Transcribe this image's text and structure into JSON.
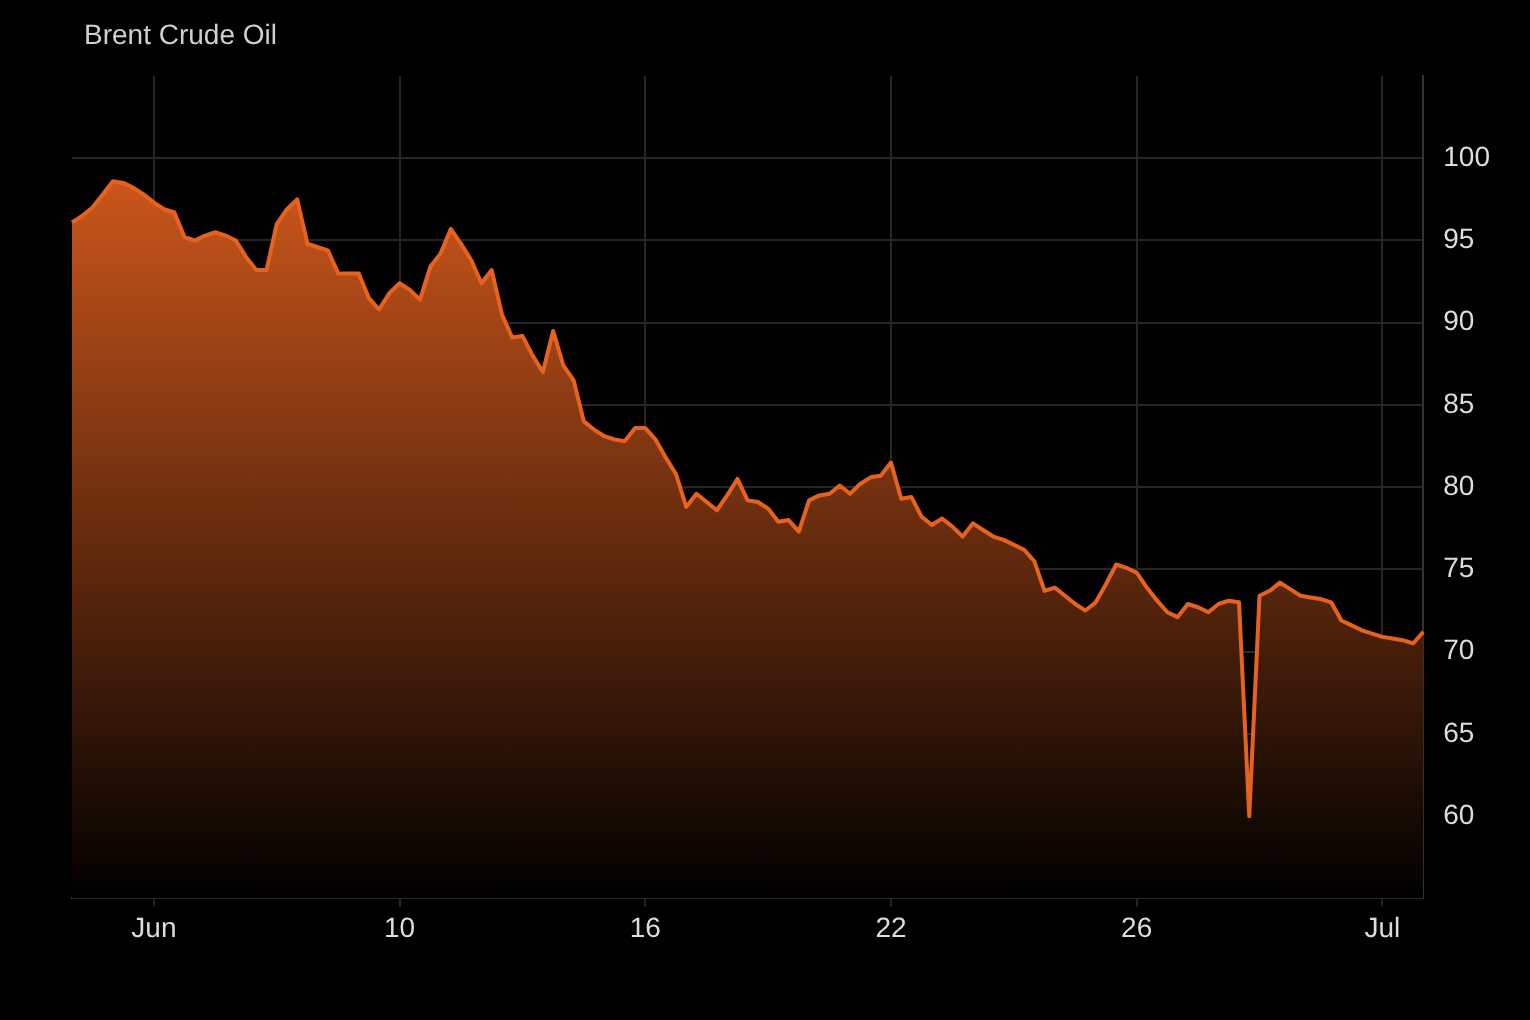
{
  "chart_data": {
    "type": "area",
    "title": "Brent Crude Oil",
    "categories": [
      null,
      null,
      null,
      null,
      null,
      null,
      null,
      null,
      "Jun",
      null,
      null,
      null,
      null,
      null,
      null,
      null,
      null,
      null,
      null,
      null,
      null,
      null,
      null,
      null,
      null,
      null,
      null,
      null,
      null,
      null,
      null,
      null,
      "10",
      null,
      null,
      null,
      null,
      null,
      null,
      null,
      null,
      null,
      null,
      null,
      null,
      null,
      null,
      null,
      null,
      null,
      null,
      null,
      null,
      null,
      null,
      null,
      "16",
      null,
      null,
      null,
      null,
      null,
      null,
      null,
      null,
      null,
      null,
      null,
      null,
      null,
      null,
      null,
      null,
      null,
      null,
      null,
      null,
      null,
      null,
      null,
      "22",
      null,
      null,
      null,
      null,
      null,
      null,
      null,
      null,
      null,
      null,
      null,
      null,
      null,
      null,
      null,
      null,
      null,
      null,
      null,
      null,
      null,
      null,
      null,
      "26",
      null,
      null,
      null,
      null,
      null,
      null,
      null,
      null,
      null,
      null,
      null,
      null,
      null,
      null,
      null,
      null,
      null,
      null,
      null,
      null,
      null,
      null,
      null,
      "Jul",
      null,
      null,
      null,
      null
    ],
    "series": [
      {
        "color": "#e8621f",
        "values": [
          96.1,
          96.5,
          97,
          97.8,
          98.6,
          98.5,
          98.2,
          97.8,
          97.3,
          96.9,
          96.7,
          95.2,
          95,
          95.3,
          95.5,
          95.3,
          95,
          94,
          93.2,
          93.2,
          96,
          96.9,
          97.5,
          94.8,
          94.6,
          94.4,
          93,
          93,
          93,
          91.5,
          90.8,
          91.8,
          92.4,
          92,
          91.4,
          93.4,
          94.2,
          95.7,
          94.8,
          93.8,
          92.4,
          93.2,
          90.5,
          89.1,
          89.2,
          88,
          87,
          89.5,
          87.4,
          86.5,
          84,
          83.5,
          83.1,
          82.9,
          82.8,
          83.6,
          83.6,
          82.9,
          81.8,
          80.8,
          78.8,
          79.6,
          79.1,
          78.6,
          79.5,
          80.5,
          79.2,
          79.1,
          78.7,
          77.9,
          78,
          77.3,
          79.2,
          79.5,
          79.6,
          80.1,
          79.6,
          80.2,
          80.6,
          80.7,
          81.5,
          79.3,
          79.4,
          78.2,
          77.7,
          78.1,
          77.6,
          77,
          77.8,
          77.4,
          77,
          76.8,
          76.5,
          76.2,
          75.5,
          73.7,
          73.9,
          73.4,
          72.9,
          72.5,
          73,
          74.1,
          75.3,
          75.1,
          74.8,
          73.9,
          73.1,
          72.4,
          72.1,
          72.9,
          72.7,
          72.4,
          72.9,
          73.1,
          73,
          60,
          73.4,
          73.7,
          74.2,
          73.8,
          73.4,
          73.3,
          73.2,
          73,
          71.9,
          71.6,
          71.3,
          71.1,
          70.9,
          70.8,
          70.7,
          70.5,
          71.2
        ]
      }
    ],
    "ylim": [
      55,
      105
    ],
    "yticks": [
      60,
      65,
      70,
      75,
      80,
      85,
      90,
      95,
      100
    ],
    "grid": true
  }
}
